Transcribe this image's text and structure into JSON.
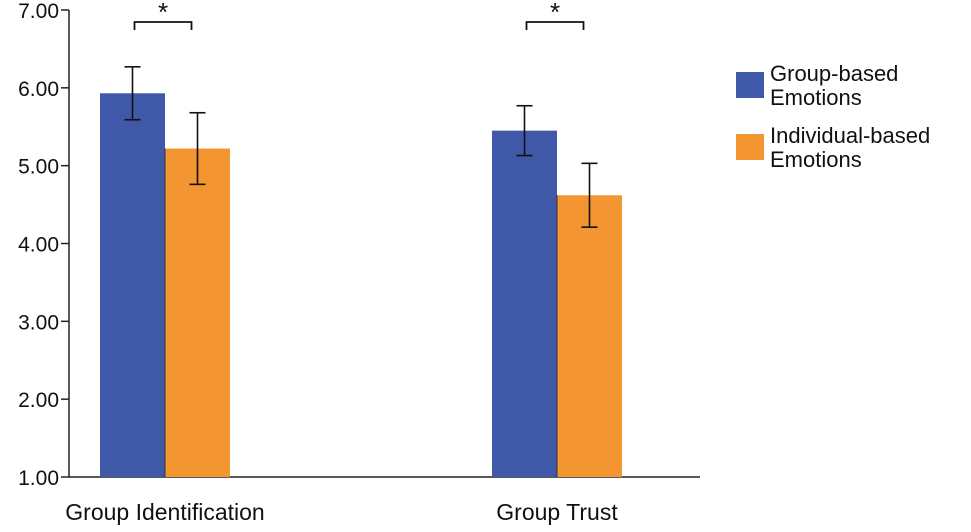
{
  "chart_data": {
    "type": "bar",
    "title": "",
    "xlabel": "",
    "ylabel": "",
    "ylim": [
      1.0,
      7.0
    ],
    "yticks": [
      "1.00",
      "2.00",
      "3.00",
      "4.00",
      "5.00",
      "6.00",
      "7.00"
    ],
    "categories": [
      "Group Identification",
      "Group Trust"
    ],
    "series": [
      {
        "name": "Group-based Emotions",
        "color": "#3f59a8",
        "values": [
          5.93,
          5.45
        ],
        "error": [
          0.34,
          0.32
        ]
      },
      {
        "name": "Individual-based Emotions",
        "color": "#f39632",
        "values": [
          5.22,
          4.62
        ],
        "error": [
          0.46,
          0.41
        ]
      }
    ],
    "significance": [
      "*",
      "*"
    ],
    "grid": false,
    "legend_position": "right"
  }
}
